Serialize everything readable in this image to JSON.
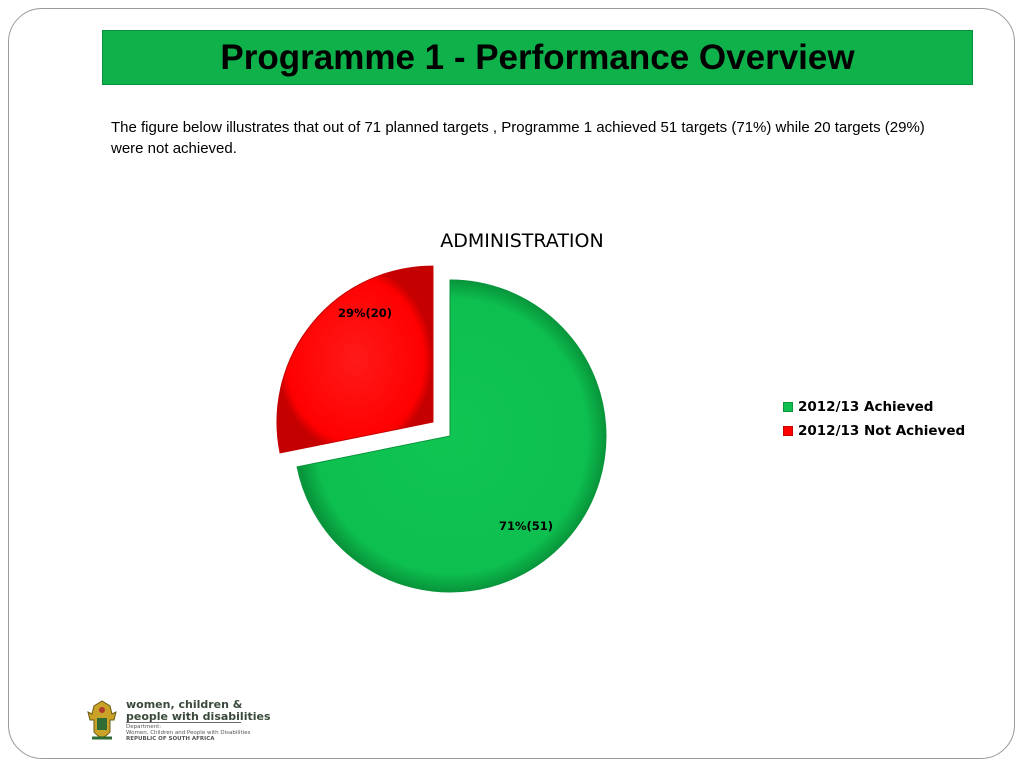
{
  "title": "Programme 1 - Performance Overview",
  "intro_text": "The figure below illustrates that out of 71 planned targets , Programme 1 achieved 51 targets (71%)  while 20 targets (29%) were not achieved.",
  "colors": {
    "title_bar": "#0fb14b",
    "achieved": "#0dbf4f",
    "not_achieved": "#ff0000"
  },
  "chart_data": {
    "type": "pie",
    "title": "ADMINISTRATION",
    "slices": [
      {
        "name": "2012/13 Achieved",
        "value": 51,
        "percent": 71,
        "label": "71%(51)",
        "color": "#0dbf4f"
      },
      {
        "name": "2012/13 Not Achieved",
        "value": 20,
        "percent": 29,
        "label": "29%(20)",
        "color": "#ff0000"
      }
    ],
    "legend": [
      "2012/13 Achieved",
      "2012/13 Not Achieved"
    ],
    "legend_position": "right"
  },
  "footer": {
    "logo_line1": "women, children &",
    "logo_line2": "people with disabilities",
    "dept_line1": "Department:",
    "dept_line2": "Women, Children and People with Disabilities",
    "dept_line3": "REPUBLIC OF SOUTH AFRICA"
  }
}
